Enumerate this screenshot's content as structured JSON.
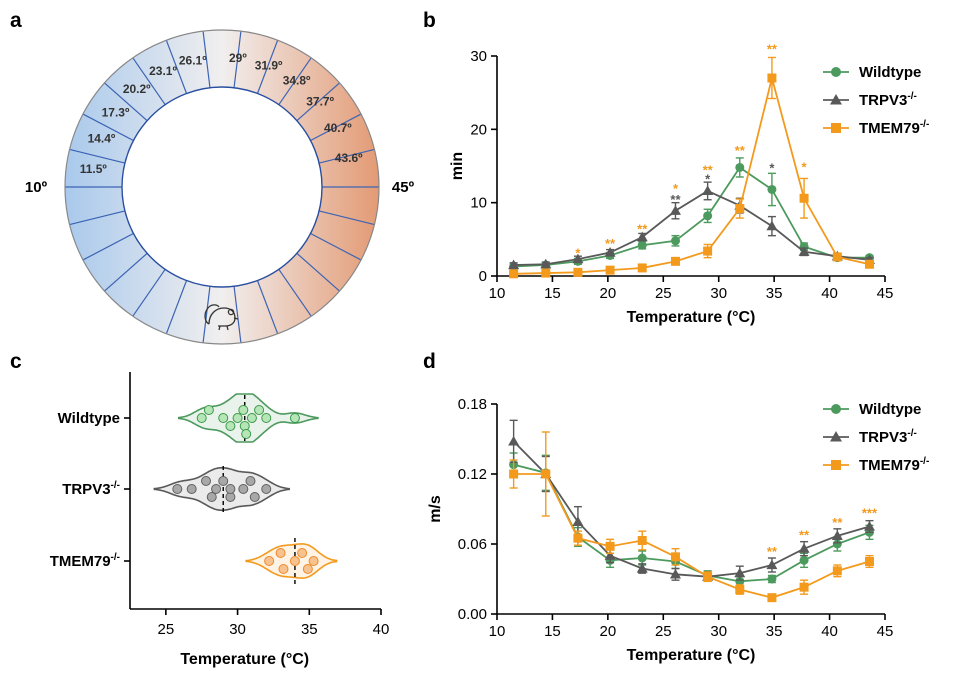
{
  "panels": {
    "a": "a",
    "b": "b",
    "c": "c",
    "d": "d"
  },
  "ring": {
    "left_end_label": "10º",
    "right_end_label": "45º",
    "segment_labels": [
      "11.5º",
      "14.4º",
      "17.3º",
      "20.2º",
      "23.1º",
      "26.1º",
      "29º",
      "31.9º",
      "34.8º",
      "37.7º",
      "40.7º",
      "43.6º"
    ],
    "icon": "mouse-icon",
    "colors": {
      "cold": "#a9c9ec",
      "neutral": "#f1efef",
      "warm": "#e39a74",
      "divider": "#3c64b4"
    }
  },
  "series_styles": [
    {
      "name": "Wildtype",
      "color": "#4c9a5e",
      "marker": "circle"
    },
    {
      "name": "TRPV3",
      "sup": "-/-",
      "color": "#595959",
      "marker": "triangle"
    },
    {
      "name": "TMEM79",
      "sup": "-/-",
      "color": "#f39a1d",
      "marker": "square"
    }
  ],
  "chart_data": [
    {
      "panel": "b",
      "type": "line",
      "xlabel": "Temperature (°C)",
      "ylabel": "min",
      "xlim": [
        10,
        45
      ],
      "ylim": [
        0,
        30
      ],
      "xticks": [
        10,
        15,
        20,
        25,
        30,
        35,
        40,
        45
      ],
      "yticks": [
        0,
        10,
        20,
        30
      ],
      "legend_position": "top-right",
      "x": [
        11.5,
        14.4,
        17.3,
        20.2,
        23.1,
        26.1,
        29,
        31.9,
        34.8,
        37.7,
        40.7,
        43.6
      ],
      "series": [
        {
          "name": "Wildtype",
          "values": [
            1.3,
            1.5,
            2.0,
            2.8,
            4.2,
            4.8,
            8.2,
            14.8,
            11.8,
            4.0,
            2.5,
            2.5
          ],
          "err": [
            0.3,
            0.3,
            0.4,
            0.4,
            0.5,
            0.7,
            0.9,
            1.3,
            2.2,
            0.5,
            0.3,
            0.3
          ]
        },
        {
          "name": "TRPV3",
          "sup": "-/-",
          "values": [
            1.5,
            1.6,
            2.3,
            3.2,
            5.3,
            8.9,
            11.6,
            9.6,
            6.8,
            3.3,
            2.7,
            2.2
          ],
          "err": [
            0.3,
            0.3,
            0.4,
            0.4,
            0.5,
            1.1,
            1.2,
            1.0,
            1.3,
            0.5,
            0.4,
            0.3
          ]
        },
        {
          "name": "TMEM79",
          "sup": "-/-",
          "values": [
            0.3,
            0.4,
            0.5,
            0.8,
            1.1,
            2.0,
            3.4,
            9.2,
            27.0,
            10.6,
            2.6,
            1.6
          ],
          "err": [
            0.1,
            0.1,
            0.2,
            0.2,
            0.3,
            0.4,
            0.9,
            1.3,
            2.8,
            2.7,
            0.4,
            0.3
          ]
        }
      ],
      "annotations": [
        {
          "x": 17.3,
          "y": 3.2,
          "text": "*",
          "series": "TMEM79"
        },
        {
          "x": 20.2,
          "y": 4.5,
          "text": "**",
          "series": "TMEM79"
        },
        {
          "x": 23.1,
          "y": 6.5,
          "text": "**",
          "series": "TMEM79"
        },
        {
          "x": 26.1,
          "y": 12.0,
          "text": "*",
          "series": "TMEM79"
        },
        {
          "x": 26.1,
          "y": 10.5,
          "text": "**",
          "series": "TRPV3"
        },
        {
          "x": 29,
          "y": 14.5,
          "text": "**",
          "series": "TMEM79"
        },
        {
          "x": 29,
          "y": 13.3,
          "text": "*",
          "series": "TRPV3"
        },
        {
          "x": 31.9,
          "y": 17.2,
          "text": "**",
          "series": "TMEM79"
        },
        {
          "x": 34.8,
          "y": 14.8,
          "text": "*",
          "series": "TRPV3"
        },
        {
          "x": 34.8,
          "y": 31.0,
          "text": "**",
          "series": "TMEM79"
        },
        {
          "x": 37.7,
          "y": 14.9,
          "text": "*",
          "series": "TMEM79"
        }
      ]
    },
    {
      "panel": "c",
      "type": "scatter",
      "xlabel": "Temperature (°C)",
      "ylabel": "",
      "xlim": [
        22.5,
        40
      ],
      "xticks": [
        25,
        30,
        35,
        40
      ],
      "categories": [
        {
          "name": "Wildtype",
          "mean": 30.5,
          "points": [
            {
              "x": 27.5,
              "j": 0
            },
            {
              "x": 28.0,
              "j": -1
            },
            {
              "x": 29.0,
              "j": 0
            },
            {
              "x": 29.5,
              "j": 1
            },
            {
              "x": 30.0,
              "j": 0
            },
            {
              "x": 30.4,
              "j": -1
            },
            {
              "x": 30.5,
              "j": 1
            },
            {
              "x": 30.6,
              "j": 2
            },
            {
              "x": 31.0,
              "j": 0
            },
            {
              "x": 31.5,
              "j": -1
            },
            {
              "x": 32.0,
              "j": 0
            },
            {
              "x": 34.0,
              "j": 0
            }
          ]
        },
        {
          "name": "TRPV3",
          "sup": "-/-",
          "mean": 29.0,
          "points": [
            {
              "x": 25.8,
              "j": 0
            },
            {
              "x": 26.8,
              "j": 0
            },
            {
              "x": 27.8,
              "j": -1
            },
            {
              "x": 28.2,
              "j": 1
            },
            {
              "x": 28.5,
              "j": 0
            },
            {
              "x": 29.0,
              "j": -1
            },
            {
              "x": 29.5,
              "j": 1
            },
            {
              "x": 29.5,
              "j": 0
            },
            {
              "x": 30.4,
              "j": 0
            },
            {
              "x": 30.9,
              "j": -1
            },
            {
              "x": 31.2,
              "j": 1
            },
            {
              "x": 32.0,
              "j": 0
            }
          ]
        },
        {
          "name": "TMEM79",
          "sup": "-/-",
          "mean": 34.0,
          "points": [
            {
              "x": 32.2,
              "j": 0
            },
            {
              "x": 33.0,
              "j": -1
            },
            {
              "x": 33.2,
              "j": 1
            },
            {
              "x": 34.0,
              "j": 0
            },
            {
              "x": 34.5,
              "j": -1
            },
            {
              "x": 34.9,
              "j": 1
            },
            {
              "x": 35.3,
              "j": 0
            }
          ]
        }
      ]
    },
    {
      "panel": "d",
      "type": "line",
      "xlabel": "Temperature (°C)",
      "ylabel": "m/s",
      "xlim": [
        10,
        45
      ],
      "ylim": [
        0,
        0.18
      ],
      "xticks": [
        10,
        15,
        20,
        25,
        30,
        35,
        40,
        45
      ],
      "yticks": [
        0.0,
        0.06,
        0.12,
        0.18
      ],
      "ytick_labels": [
        "0.00",
        "0.06",
        "0.12",
        "0.18"
      ],
      "legend_position": "top-right",
      "x": [
        11.5,
        14.4,
        17.3,
        20.2,
        23.1,
        26.1,
        29,
        31.9,
        34.8,
        37.7,
        40.7,
        43.6
      ],
      "series": [
        {
          "name": "Wildtype",
          "values": [
            0.128,
            0.121,
            0.066,
            0.046,
            0.048,
            0.045,
            0.033,
            0.028,
            0.03,
            0.046,
            0.06,
            0.07
          ],
          "err": [
            0.01,
            0.015,
            0.008,
            0.006,
            0.006,
            0.006,
            0.004,
            0.004,
            0.003,
            0.006,
            0.006,
            0.006
          ]
        },
        {
          "name": "TRPV3",
          "sup": "-/-",
          "values": [
            0.148,
            0.12,
            0.079,
            0.05,
            0.039,
            0.034,
            0.032,
            0.035,
            0.042,
            0.056,
            0.067,
            0.075
          ],
          "err": [
            0.018,
            0.015,
            0.013,
            0.006,
            0.004,
            0.005,
            0.004,
            0.006,
            0.006,
            0.006,
            0.006,
            0.005
          ]
        },
        {
          "name": "TMEM79",
          "sup": "-/-",
          "values": [
            0.12,
            0.12,
            0.065,
            0.058,
            0.063,
            0.049,
            0.032,
            0.021,
            0.014,
            0.023,
            0.037,
            0.045
          ],
          "err": [
            0.012,
            0.036,
            0.006,
            0.006,
            0.008,
            0.007,
            0.004,
            0.004,
            0.002,
            0.006,
            0.005,
            0.005
          ]
        }
      ],
      "annotations": [
        {
          "x": 34.8,
          "y": 0.054,
          "text": "**",
          "series": "TMEM79"
        },
        {
          "x": 37.7,
          "y": 0.068,
          "text": "**",
          "series": "TMEM79"
        },
        {
          "x": 40.7,
          "y": 0.079,
          "text": "**",
          "series": "TMEM79"
        },
        {
          "x": 43.6,
          "y": 0.087,
          "text": "***",
          "series": "TMEM79"
        }
      ]
    }
  ]
}
